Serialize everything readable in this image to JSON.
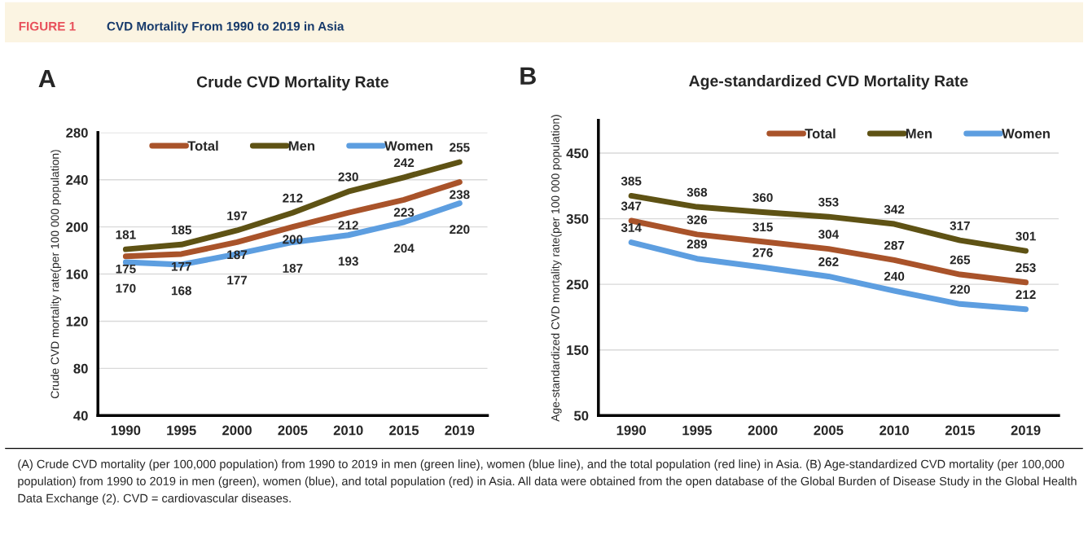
{
  "chart_data": [
    {
      "type": "line",
      "title": "Crude CVD Mortality Rate",
      "ylabel": "Crude CVD mortality rate(per 100 000 population)",
      "categories": [
        "1990",
        "1995",
        "2000",
        "2005",
        "2010",
        "2015",
        "2019"
      ],
      "series": [
        {
          "name": "Total",
          "color": "#a9532a",
          "values": [
            175,
            177,
            187,
            200,
            212,
            223,
            238
          ]
        },
        {
          "name": "Men",
          "color": "#5e5214",
          "values": [
            181,
            185,
            197,
            212,
            230,
            242,
            255
          ]
        },
        {
          "name": "Women",
          "color": "#5d9ee0",
          "values": [
            170,
            168,
            177,
            187,
            193,
            204,
            220
          ]
        }
      ],
      "ylim": [
        40,
        280
      ],
      "yticks": [
        40,
        80,
        120,
        160,
        200,
        240,
        280
      ],
      "grid": "y",
      "legend": "top",
      "data_labels": true,
      "annotations": [
        "FIGURE 1",
        "CVD Mortality From 1990 to 2019 in Asia",
        "A",
        "(A) Crude CVD mortality (per 100,000 population) from 1990 to 2019 in men (green line), women (blue line), and the total population (red line) in Asia. (B) Age-standardized CVD mortality (per 100,000 population) from 1990 to 2019 in men (green), women (blue), and total population (red) in Asia. All data were obtained from the open database of the Global Burden of Disease Study in the Global Health Data Exchange (2). CVD = cardiovascular diseases."
      ]
    },
    {
      "type": "line",
      "title": "Age-standardized CVD Mortality Rate",
      "ylabel": "Age-standardized CVD mortality rate(per 100 000 population)",
      "categories": [
        "1990",
        "1995",
        "2000",
        "2005",
        "2010",
        "2015",
        "2019"
      ],
      "series": [
        {
          "name": "Total",
          "color": "#a9532a",
          "values": [
            347,
            326,
            315,
            304,
            287,
            265,
            253
          ]
        },
        {
          "name": "Men",
          "color": "#5e5214",
          "values": [
            385,
            368,
            360,
            353,
            342,
            317,
            301
          ]
        },
        {
          "name": "Women",
          "color": "#5d9ee0",
          "values": [
            314,
            289,
            276,
            262,
            240,
            220,
            212
          ]
        }
      ],
      "ylim": [
        50,
        500
      ],
      "yticks": [
        50,
        150,
        250,
        350,
        450
      ],
      "grid": "y",
      "legend": "top right",
      "data_labels": true,
      "annotations": [
        "B"
      ]
    }
  ]
}
